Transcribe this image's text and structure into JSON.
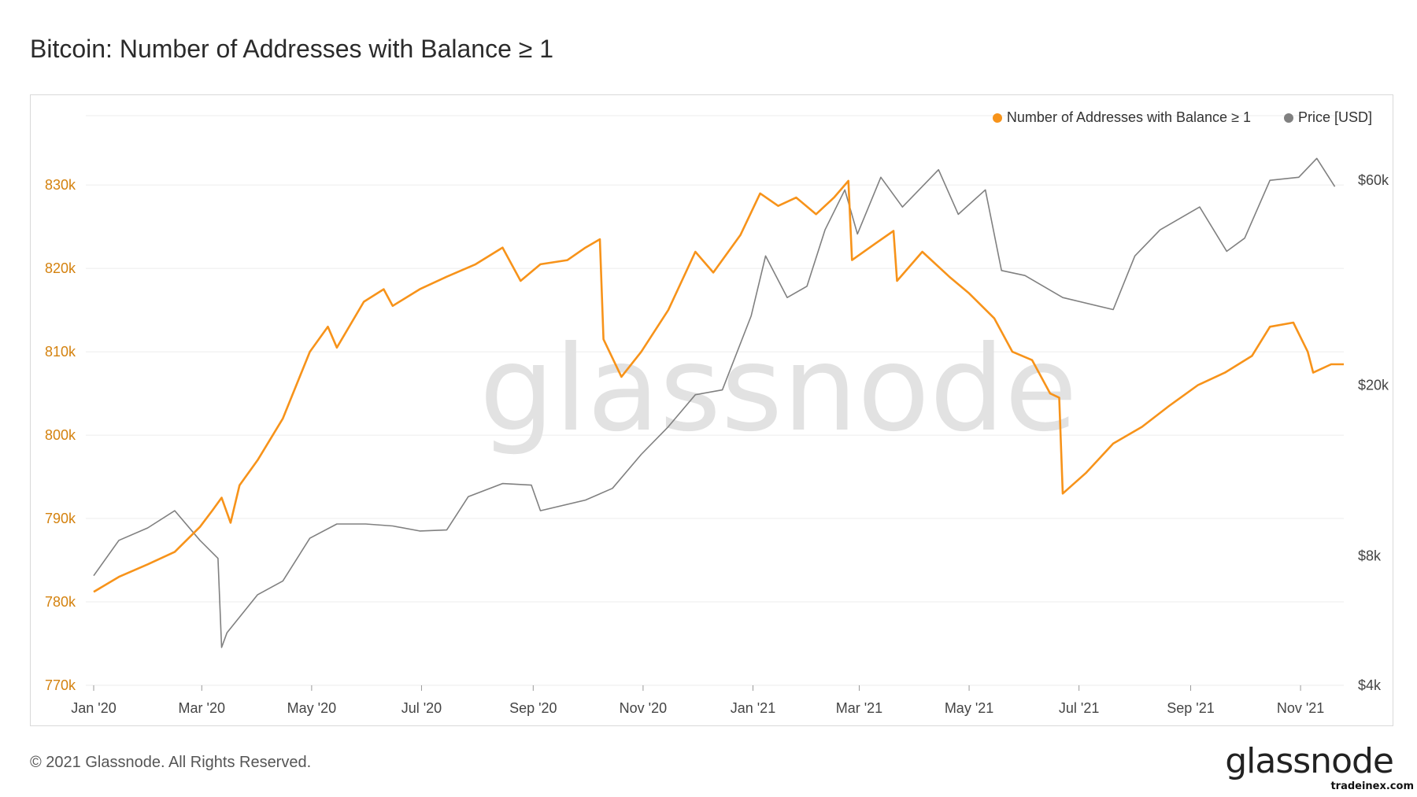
{
  "title": "Bitcoin: Number of Addresses with Balance ≥ 1",
  "footer": "© 2021 Glassnode. All Rights Reserved.",
  "brand": "glassnode",
  "watermark": "glassnode",
  "site": "tradeinex.com",
  "colors": {
    "addresses": "#f7931a",
    "addresses_axis": "#d4820f",
    "price": "#808080",
    "grid": "#ececec"
  },
  "chart_data": {
    "type": "line",
    "title": "Bitcoin: Number of Addresses with Balance ≥ 1",
    "x_ticks": [
      "Jan '20",
      "Mar '20",
      "May '20",
      "Jul '20",
      "Sep '20",
      "Nov '20",
      "Jan '21",
      "Mar '21",
      "May '21",
      "Jul '21",
      "Sep '21",
      "Nov '21"
    ],
    "y_left": {
      "ticks": [
        770000,
        780000,
        790000,
        800000,
        810000,
        820000,
        830000
      ],
      "labels": [
        "770k",
        "780k",
        "790k",
        "800k",
        "810k",
        "820k",
        "830k"
      ],
      "range": [
        770000,
        837000
      ]
    },
    "y_right": {
      "scale": "log",
      "ticks": [
        4000,
        8000,
        20000,
        60000
      ],
      "labels": [
        "$4k",
        "$8k",
        "$20k",
        "$60k"
      ],
      "range": [
        4000,
        80000
      ]
    },
    "legend": [
      "Number of Addresses with Balance ≥ 1",
      "Price [USD]"
    ],
    "legend_position": "top-right",
    "grid": true,
    "series": [
      {
        "name": "Number of Addresses with Balance ≥ 1",
        "axis": "left",
        "points": [
          [
            "2020-01-01",
            781200
          ],
          [
            "2020-01-15",
            783000
          ],
          [
            "2020-01-31",
            784500
          ],
          [
            "2020-02-15",
            786000
          ],
          [
            "2020-02-29",
            789000
          ],
          [
            "2020-03-07",
            791000
          ],
          [
            "2020-03-12",
            792500
          ],
          [
            "2020-03-17",
            789500
          ],
          [
            "2020-03-22",
            794000
          ],
          [
            "2020-04-01",
            797000
          ],
          [
            "2020-04-15",
            802000
          ],
          [
            "2020-04-30",
            810000
          ],
          [
            "2020-05-10",
            813000
          ],
          [
            "2020-05-15",
            810500
          ],
          [
            "2020-05-30",
            816000
          ],
          [
            "2020-06-10",
            817500
          ],
          [
            "2020-06-15",
            815500
          ],
          [
            "2020-06-30",
            817500
          ],
          [
            "2020-07-15",
            819000
          ],
          [
            "2020-07-31",
            820500
          ],
          [
            "2020-08-15",
            822500
          ],
          [
            "2020-08-25",
            818500
          ],
          [
            "2020-09-05",
            820500
          ],
          [
            "2020-09-20",
            821000
          ],
          [
            "2020-09-30",
            822500
          ],
          [
            "2020-10-08",
            823500
          ],
          [
            "2020-10-10",
            811500
          ],
          [
            "2020-10-20",
            807000
          ],
          [
            "2020-10-31",
            810000
          ],
          [
            "2020-11-15",
            815000
          ],
          [
            "2020-11-30",
            822000
          ],
          [
            "2020-12-10",
            819500
          ],
          [
            "2020-12-25",
            824000
          ],
          [
            "2021-01-05",
            829000
          ],
          [
            "2021-01-15",
            827500
          ],
          [
            "2021-01-25",
            828500
          ],
          [
            "2021-02-05",
            826500
          ],
          [
            "2021-02-15",
            828500
          ],
          [
            "2021-02-23",
            830500
          ],
          [
            "2021-02-25",
            821000
          ],
          [
            "2021-03-10",
            823000
          ],
          [
            "2021-03-20",
            824500
          ],
          [
            "2021-03-22",
            818500
          ],
          [
            "2021-04-05",
            822000
          ],
          [
            "2021-04-20",
            819000
          ],
          [
            "2021-05-01",
            817000
          ],
          [
            "2021-05-15",
            814000
          ],
          [
            "2021-05-25",
            810000
          ],
          [
            "2021-06-05",
            809000
          ],
          [
            "2021-06-15",
            805000
          ],
          [
            "2021-06-20",
            804500
          ],
          [
            "2021-06-22",
            793000
          ],
          [
            "2021-07-05",
            795500
          ],
          [
            "2021-07-20",
            799000
          ],
          [
            "2021-08-05",
            801000
          ],
          [
            "2021-08-20",
            803500
          ],
          [
            "2021-09-05",
            806000
          ],
          [
            "2021-09-20",
            807500
          ],
          [
            "2021-10-05",
            809500
          ],
          [
            "2021-10-15",
            813000
          ],
          [
            "2021-10-28",
            813500
          ],
          [
            "2021-11-05",
            810000
          ],
          [
            "2021-11-08",
            807500
          ],
          [
            "2021-11-18",
            808500
          ],
          [
            "2021-11-25",
            808500
          ]
        ]
      },
      {
        "name": "Price [USD]",
        "axis": "right",
        "points": [
          [
            "2020-01-01",
            7200
          ],
          [
            "2020-01-15",
            8700
          ],
          [
            "2020-01-31",
            9300
          ],
          [
            "2020-02-15",
            10200
          ],
          [
            "2020-02-29",
            8700
          ],
          [
            "2020-03-10",
            7900
          ],
          [
            "2020-03-12",
            4900
          ],
          [
            "2020-03-15",
            5300
          ],
          [
            "2020-04-01",
            6500
          ],
          [
            "2020-04-15",
            7000
          ],
          [
            "2020-04-30",
            8800
          ],
          [
            "2020-05-15",
            9500
          ],
          [
            "2020-05-31",
            9500
          ],
          [
            "2020-06-15",
            9400
          ],
          [
            "2020-06-30",
            9150
          ],
          [
            "2020-07-15",
            9200
          ],
          [
            "2020-07-27",
            11000
          ],
          [
            "2020-08-15",
            11800
          ],
          [
            "2020-08-31",
            11700
          ],
          [
            "2020-09-05",
            10200
          ],
          [
            "2020-09-30",
            10800
          ],
          [
            "2020-10-15",
            11500
          ],
          [
            "2020-10-31",
            13800
          ],
          [
            "2020-11-15",
            16000
          ],
          [
            "2020-11-30",
            19000
          ],
          [
            "2020-12-15",
            19500
          ],
          [
            "2020-12-31",
            29000
          ],
          [
            "2021-01-08",
            40000
          ],
          [
            "2021-01-20",
            32000
          ],
          [
            "2021-01-31",
            34000
          ],
          [
            "2021-02-10",
            46000
          ],
          [
            "2021-02-21",
            57000
          ],
          [
            "2021-02-28",
            45000
          ],
          [
            "2021-03-13",
            61000
          ],
          [
            "2021-03-25",
            52000
          ],
          [
            "2021-04-14",
            63500
          ],
          [
            "2021-04-25",
            50000
          ],
          [
            "2021-05-10",
            57000
          ],
          [
            "2021-05-19",
            37000
          ],
          [
            "2021-06-01",
            36000
          ],
          [
            "2021-06-22",
            32000
          ],
          [
            "2021-07-20",
            30000
          ],
          [
            "2021-08-01",
            40000
          ],
          [
            "2021-08-15",
            46000
          ],
          [
            "2021-09-06",
            52000
          ],
          [
            "2021-09-21",
            41000
          ],
          [
            "2021-10-01",
            44000
          ],
          [
            "2021-10-15",
            60000
          ],
          [
            "2021-10-31",
            61000
          ],
          [
            "2021-11-10",
            67500
          ],
          [
            "2021-11-20",
            58000
          ]
        ]
      }
    ]
  }
}
